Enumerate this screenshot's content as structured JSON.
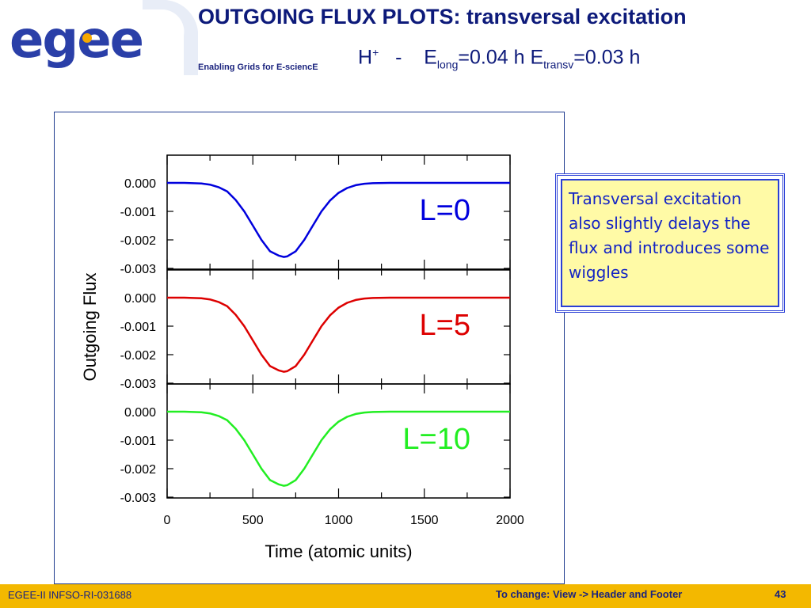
{
  "header": {
    "logo_text": "egee",
    "tagline": "Enabling Grids for E-sciencE",
    "title": "OUTGOING FLUX PLOTS: transversal excitation",
    "subtitle": {
      "ion": "H",
      "ion_charge": "+",
      "dash": "-",
      "e_long_symbol": "E",
      "e_long_sub": "long",
      "e_long_value": "=0.04 h",
      "e_transv_symbol": "E",
      "e_transv_sub": "transv",
      "e_transv_value": "=0.03 h"
    }
  },
  "note": {
    "text": "Transversal excitation also slightly delays the flux and introduces some wiggles"
  },
  "footer": {
    "left": "EGEE-II INFSO-RI-031688",
    "right": "To change: View -> Header and Footer",
    "page": "43"
  },
  "colors": {
    "title": "#0d1a7a",
    "footer_bg": "#f3b800",
    "note_bg": "#fffaa6",
    "note_text": "#1424c4",
    "L0": "#0000dd",
    "L5": "#dd0000",
    "L10": "#22ee22"
  },
  "chart_data": {
    "type": "line",
    "xlabel": "Time (atomic units)",
    "ylabel": "Outgoing Flux",
    "xlim": [
      0,
      2000
    ],
    "xticks": [
      "0",
      "500",
      "1000",
      "1500",
      "2000"
    ],
    "ylim": [
      -0.003,
      0.0
    ],
    "yticks": [
      "0.000",
      "-0.001",
      "-0.002",
      "-0.003"
    ],
    "panels": [
      {
        "label": "L=0",
        "color": "#0000dd",
        "x": [
          0,
          100,
          200,
          250,
          300,
          350,
          400,
          450,
          500,
          550,
          600,
          650,
          680,
          700,
          750,
          800,
          850,
          900,
          950,
          1000,
          1050,
          1100,
          1150,
          1200,
          1300,
          1400,
          1600,
          2000
        ],
        "y": [
          0.0,
          0.0,
          -2e-05,
          -6e-05,
          -0.00015,
          -0.0003,
          -0.0006,
          -0.001,
          -0.0015,
          -0.002,
          -0.0024,
          -0.00255,
          -0.0026,
          -0.00258,
          -0.0024,
          -0.002,
          -0.0015,
          -0.001,
          -0.00062,
          -0.00035,
          -0.00018,
          -8e-05,
          -3e-05,
          -1e-05,
          0.0,
          0.0,
          0.0,
          0.0
        ]
      },
      {
        "label": "L=5",
        "color": "#dd0000",
        "x": [
          0,
          100,
          200,
          250,
          300,
          350,
          400,
          450,
          500,
          550,
          600,
          650,
          680,
          700,
          750,
          800,
          850,
          900,
          950,
          1000,
          1050,
          1100,
          1150,
          1200,
          1300,
          1400,
          1600,
          2000
        ],
        "y": [
          0.0,
          0.0,
          -2e-05,
          -6e-05,
          -0.00015,
          -0.0003,
          -0.0006,
          -0.001,
          -0.0015,
          -0.002,
          -0.0024,
          -0.00255,
          -0.0026,
          -0.00258,
          -0.0024,
          -0.002,
          -0.0015,
          -0.001,
          -0.00062,
          -0.00035,
          -0.00018,
          -8e-05,
          -3e-05,
          -1e-05,
          0.0,
          0.0,
          0.0,
          0.0
        ]
      },
      {
        "label": "L=10",
        "color": "#22ee22",
        "x": [
          0,
          100,
          200,
          250,
          300,
          350,
          400,
          450,
          500,
          550,
          600,
          650,
          680,
          700,
          750,
          800,
          850,
          900,
          950,
          1000,
          1050,
          1100,
          1150,
          1200,
          1300,
          1400,
          1600,
          2000
        ],
        "y": [
          0.0,
          0.0,
          -2e-05,
          -6e-05,
          -0.00015,
          -0.0003,
          -0.0006,
          -0.001,
          -0.0015,
          -0.002,
          -0.0024,
          -0.00255,
          -0.0026,
          -0.00258,
          -0.0024,
          -0.002,
          -0.0015,
          -0.001,
          -0.00062,
          -0.00035,
          -0.00018,
          -8e-05,
          -3e-05,
          -1e-05,
          0.0,
          0.0,
          0.0,
          0.0
        ]
      }
    ]
  }
}
